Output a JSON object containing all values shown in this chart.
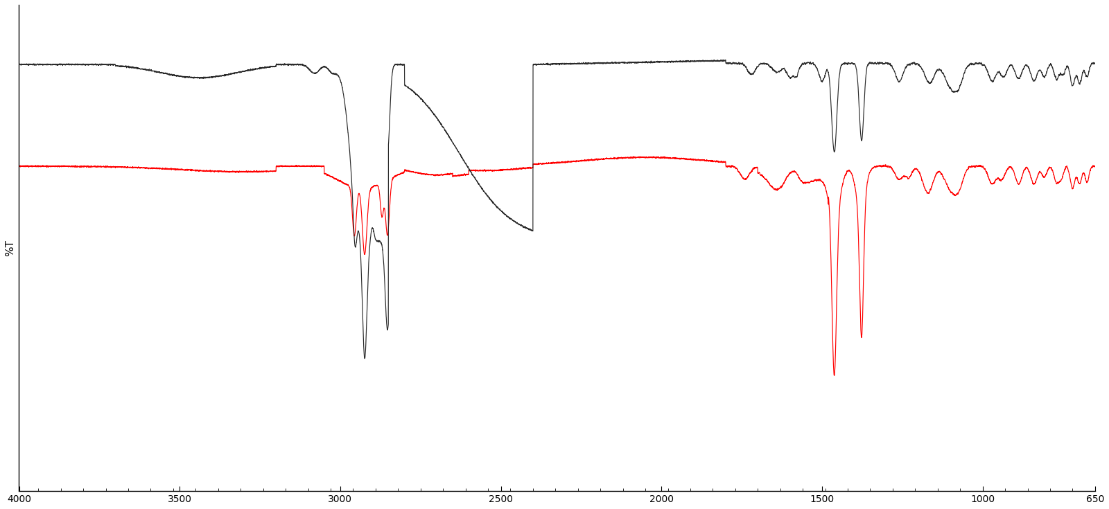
{
  "title": "",
  "xlabel": "",
  "ylabel": "%T",
  "xlim": [
    4000,
    650
  ],
  "ylim": [
    -105,
    115
  ],
  "background_color": "#ffffff",
  "x_ticks": [
    4000,
    3500,
    3000,
    2500,
    2000,
    1500,
    1000,
    650
  ],
  "black_line_color": "#2a2a2a",
  "red_line_color": "#ff0000",
  "black_baseline": 88,
  "red_baseline": 42
}
